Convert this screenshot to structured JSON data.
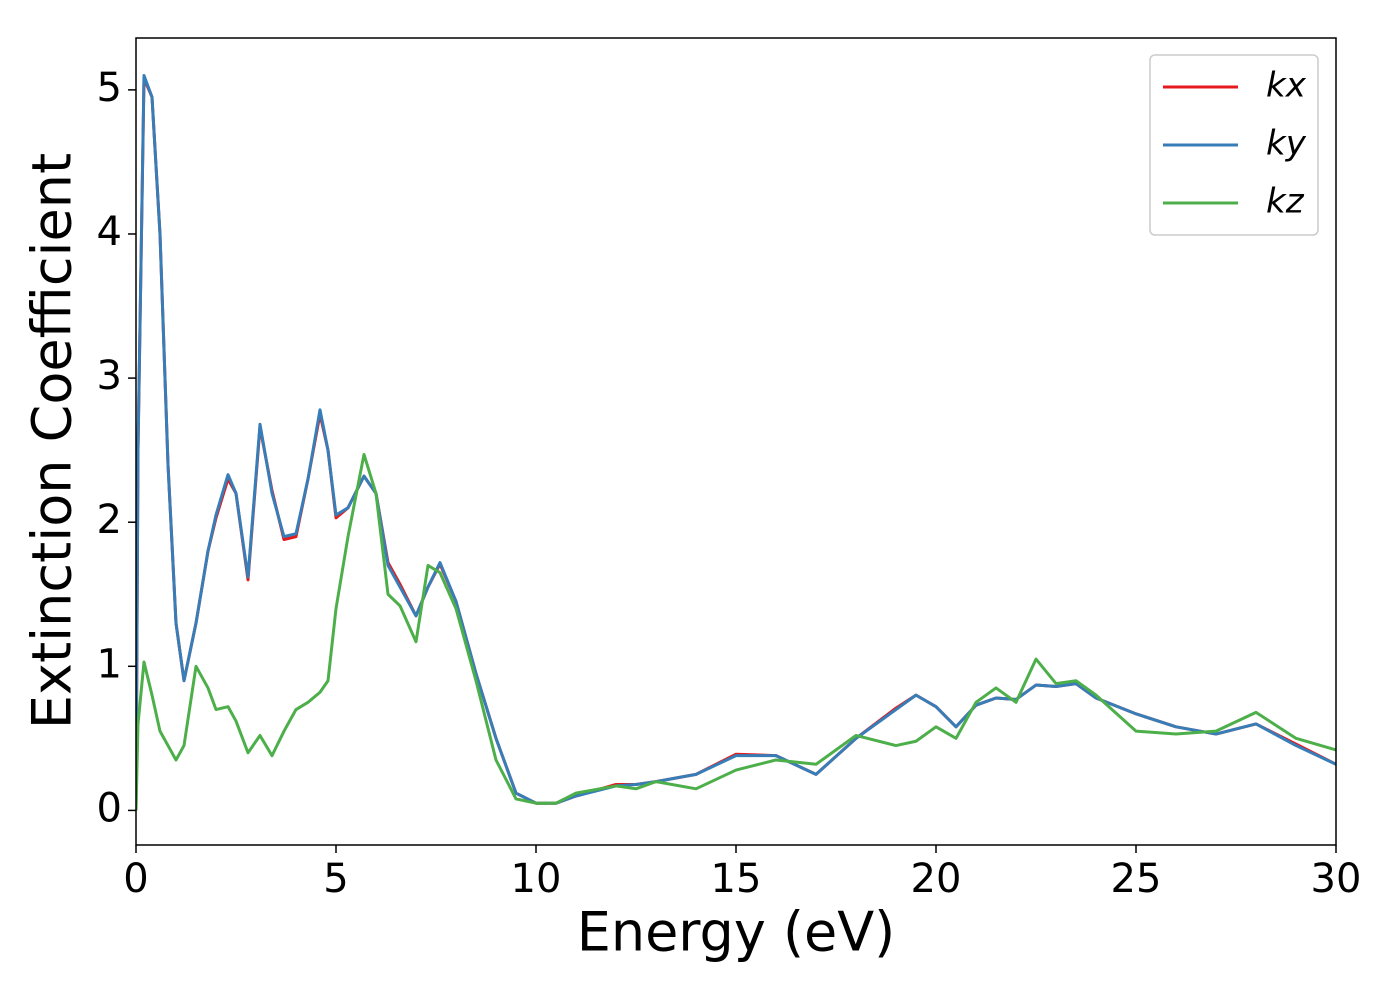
{
  "chart_data": {
    "type": "line",
    "xlabel": "Energy (eV)",
    "ylabel": "Extinction Coefficient",
    "x": [
      0,
      0.05,
      0.2,
      0.4,
      0.6,
      0.8,
      1.0,
      1.2,
      1.5,
      1.8,
      2.0,
      2.3,
      2.5,
      2.8,
      3.1,
      3.4,
      3.7,
      4.0,
      4.3,
      4.6,
      4.8,
      5.0,
      5.3,
      5.7,
      6.0,
      6.3,
      6.6,
      7.0,
      7.3,
      7.6,
      8.0,
      8.5,
      9.0,
      9.5,
      10,
      10.5,
      11,
      12,
      12.5,
      13,
      14,
      15,
      16,
      17,
      18,
      19,
      19.5,
      20,
      20.5,
      21,
      21.5,
      22,
      22.5,
      23,
      23.5,
      24,
      25,
      26,
      27,
      28,
      29,
      30
    ],
    "series": [
      {
        "name": "kx",
        "color": "#e41a1c",
        "values": [
          0,
          2.5,
          5.08,
          4.95,
          4.0,
          2.4,
          1.3,
          0.9,
          1.3,
          1.8,
          2.03,
          2.3,
          2.2,
          1.6,
          2.66,
          2.22,
          1.88,
          1.9,
          2.3,
          2.75,
          2.5,
          2.03,
          2.1,
          2.32,
          2.2,
          1.72,
          1.57,
          1.35,
          1.55,
          1.71,
          1.45,
          0.95,
          0.5,
          0.12,
          0.05,
          0.05,
          0.1,
          0.18,
          0.18,
          0.2,
          0.25,
          0.39,
          0.38,
          0.25,
          0.5,
          0.71,
          0.8,
          0.72,
          0.58,
          0.73,
          0.78,
          0.77,
          0.87,
          0.86,
          0.88,
          0.78,
          0.67,
          0.58,
          0.53,
          0.6,
          0.46,
          0.32
        ]
      },
      {
        "name": "ky",
        "color": "#377eb8",
        "values": [
          0,
          2.5,
          5.1,
          4.95,
          4.0,
          2.4,
          1.3,
          0.9,
          1.3,
          1.8,
          2.05,
          2.33,
          2.2,
          1.62,
          2.68,
          2.2,
          1.9,
          1.92,
          2.3,
          2.78,
          2.5,
          2.05,
          2.1,
          2.32,
          2.2,
          1.7,
          1.55,
          1.35,
          1.55,
          1.72,
          1.45,
          0.95,
          0.5,
          0.12,
          0.05,
          0.05,
          0.1,
          0.17,
          0.18,
          0.2,
          0.25,
          0.38,
          0.38,
          0.25,
          0.5,
          0.7,
          0.8,
          0.72,
          0.58,
          0.73,
          0.78,
          0.77,
          0.87,
          0.86,
          0.88,
          0.78,
          0.67,
          0.58,
          0.53,
          0.6,
          0.45,
          0.32
        ]
      },
      {
        "name": "kz",
        "color": "#4daf4a",
        "values": [
          0,
          0.6,
          1.03,
          0.8,
          0.55,
          0.45,
          0.35,
          0.45,
          1.0,
          0.85,
          0.7,
          0.72,
          0.62,
          0.4,
          0.52,
          0.38,
          0.55,
          0.7,
          0.75,
          0.82,
          0.9,
          1.4,
          1.9,
          2.47,
          2.2,
          1.5,
          1.42,
          1.17,
          1.7,
          1.65,
          1.4,
          0.9,
          0.35,
          0.08,
          0.05,
          0.05,
          0.12,
          0.17,
          0.15,
          0.2,
          0.15,
          0.28,
          0.35,
          0.32,
          0.52,
          0.45,
          0.48,
          0.58,
          0.5,
          0.75,
          0.85,
          0.75,
          1.05,
          0.88,
          0.9,
          0.8,
          0.55,
          0.53,
          0.55,
          0.68,
          0.5,
          0.42
        ]
      }
    ],
    "xlim": [
      0,
      30
    ],
    "xticks": [
      0,
      5,
      10,
      15,
      20,
      25,
      30
    ],
    "ylim": [
      -0.24,
      5.36
    ],
    "yticks": [
      0,
      1,
      2,
      3,
      4,
      5
    ],
    "grid": false,
    "legend": "upper right"
  }
}
